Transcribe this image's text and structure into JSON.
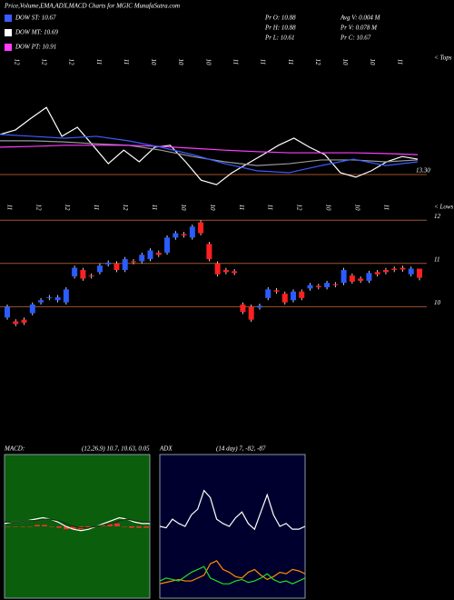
{
  "header": {
    "title": "Price,Volume,EMA,ADX,MACD Charts for MGIC MunafaSutra.com",
    "legend": [
      {
        "text": "DOW ST: 10.67",
        "color": "#3a5cff"
      },
      {
        "text": "DOW MT: 10.69",
        "color": "#ffffff"
      },
      {
        "text": "DOW PT: 10.91",
        "color": "#ff3cff"
      }
    ],
    "stats": [
      "Pr  O: 10.88",
      "Avg V: 0.004  M",
      "Pr  H: 10.88",
      "Pr  V: 0.078 M",
      "Pr  L: 10.61",
      "Pr  C: 10.67"
    ],
    "top_labels": [
      "12",
      "12",
      "12",
      "11",
      "11",
      "10",
      "10",
      "10",
      "11",
      "11",
      "11",
      "12",
      "10",
      "10",
      "11"
    ],
    "top_end": "< Tops",
    "bottom_labels": [
      "11",
      "12",
      "12",
      "11",
      "12",
      "11",
      "10",
      "10",
      "11",
      "11",
      "12",
      "10",
      "10",
      "11"
    ],
    "bottom_end": "< Lows"
  },
  "chart_data": [
    {
      "type": "line",
      "ylim": [
        12.5,
        16.5
      ],
      "yticks": [
        {
          "value": 13.3,
          "label": "13.30"
        }
      ],
      "grid_color": "#a0522d",
      "series": [
        {
          "color": "#ffffff",
          "values": [
            14.37,
            14.49,
            14.8,
            15.09,
            14.32,
            14.56,
            14.08,
            13.59,
            13.95,
            13.64,
            14.03,
            14.08,
            13.64,
            13.15,
            13.03,
            13.35,
            13.59,
            13.83,
            14.08,
            14.27,
            14.03,
            13.83,
            13.35,
            13.23,
            13.4,
            13.64,
            13.78,
            13.71
          ]
        },
        {
          "color": "#999999",
          "values": [
            14.2,
            14.2,
            14.17,
            14.12,
            14.08,
            13.95,
            13.78,
            13.64,
            13.54,
            13.59,
            13.69,
            13.69,
            13.64,
            13.69
          ]
        },
        {
          "color": "#ff3cff",
          "values": [
            14.03,
            14.05,
            14.08,
            14.08,
            14.08,
            14.05,
            14.0,
            13.95,
            13.91,
            13.88,
            13.88,
            13.88,
            13.86,
            13.83
          ]
        },
        {
          "color": "#3a5cff",
          "values": [
            14.37,
            14.32,
            14.27,
            14.32,
            14.2,
            14.03,
            13.83,
            13.59,
            13.4,
            13.35,
            13.54,
            13.71,
            13.54,
            13.64
          ]
        }
      ]
    },
    {
      "type": "candlestick",
      "ylim": [
        7.0,
        12.3
      ],
      "yticks": [
        10,
        11,
        12
      ],
      "grid_color": "#a0522d",
      "up_color": "#2a5cff",
      "down_color": "#ff2020",
      "open": [
        9.75,
        9.66,
        9.7,
        9.85,
        10.1,
        10.2,
        10.15,
        10.1,
        10.7,
        10.85,
        10.72,
        10.8,
        10.98,
        11.0,
        10.85,
        11.05,
        11.05,
        11.1,
        11.25,
        11.25,
        11.6,
        11.68,
        11.6,
        11.95,
        11.45,
        11.0,
        10.85,
        10.82,
        10.05,
        10.0,
        9.98,
        10.2,
        10.38,
        10.3,
        10.15,
        10.35,
        10.42,
        10.48,
        10.45,
        10.52,
        10.55,
        10.72,
        10.65,
        10.6,
        10.8,
        10.85,
        10.88,
        10.9,
        10.75,
        10.88
      ],
      "high": [
        10.05,
        9.71,
        9.75,
        10.1,
        10.2,
        10.27,
        10.27,
        10.45,
        10.95,
        10.9,
        10.77,
        11.0,
        11.07,
        11.05,
        11.15,
        11.1,
        11.25,
        11.35,
        11.3,
        11.65,
        11.75,
        11.73,
        11.9,
        12.0,
        11.5,
        11.05,
        10.9,
        10.87,
        10.1,
        10.05,
        10.07,
        10.45,
        10.43,
        10.35,
        10.4,
        10.4,
        10.55,
        10.53,
        10.6,
        10.57,
        10.9,
        10.77,
        10.7,
        10.83,
        10.85,
        10.9,
        10.93,
        10.95,
        10.93,
        10.88
      ],
      "low": [
        9.7,
        9.55,
        9.58,
        9.8,
        10.05,
        10.15,
        10.1,
        10.05,
        10.65,
        10.6,
        10.65,
        10.75,
        10.93,
        10.8,
        10.8,
        10.98,
        11.0,
        11.05,
        11.15,
        11.2,
        11.55,
        11.6,
        11.55,
        11.65,
        11.05,
        10.7,
        10.75,
        10.73,
        9.83,
        9.65,
        9.93,
        10.15,
        10.3,
        10.05,
        10.1,
        10.15,
        10.37,
        10.4,
        10.4,
        10.45,
        10.5,
        10.53,
        10.55,
        10.55,
        10.7,
        10.75,
        10.8,
        10.81,
        10.7,
        10.61
      ],
      "close": [
        10.0,
        9.6,
        9.63,
        10.05,
        10.15,
        10.22,
        10.22,
        10.4,
        10.9,
        10.65,
        10.7,
        10.95,
        11.02,
        10.85,
        11.1,
        11.03,
        11.2,
        11.3,
        11.2,
        11.6,
        11.7,
        11.65,
        11.85,
        11.7,
        11.1,
        10.75,
        10.8,
        10.78,
        9.88,
        9.7,
        10.02,
        10.4,
        10.35,
        10.1,
        10.35,
        10.2,
        10.5,
        10.45,
        10.55,
        10.5,
        10.85,
        10.58,
        10.6,
        10.78,
        10.75,
        10.8,
        10.85,
        10.86,
        10.88,
        10.67
      ]
    },
    {
      "type": "line",
      "title": "MACD:",
      "subtitle": "(12,26,9) 10.7, 10.63, 0.05",
      "ylim": [
        -0.5,
        0.5
      ],
      "background": "#0b5e0b",
      "hist_color": "#ff3030",
      "histogram": [
        0,
        0,
        0,
        0,
        0.01,
        0.01,
        0,
        -0.01,
        -0.02,
        -0.02,
        -0.02,
        -0.01,
        0,
        0.01,
        0.02,
        0.02,
        0,
        -0.01,
        -0.01,
        -0.01
      ],
      "series": [
        {
          "color": "#ffffff",
          "values": [
            0.02,
            0.03,
            0.03,
            0.04,
            0.05,
            0.06,
            0.05,
            0.03,
            0.0,
            -0.02,
            -0.03,
            -0.02,
            0.0,
            0.02,
            0.04,
            0.06,
            0.05,
            0.03,
            0.02,
            0.02
          ]
        },
        {
          "color": "#113311",
          "values": [
            0.03,
            0.03,
            0.03,
            0.04,
            0.04,
            0.05,
            0.05,
            0.04,
            0.02,
            0.0,
            -0.01,
            -0.01,
            0.0,
            0.01,
            0.02,
            0.04,
            0.05,
            0.04,
            0.03,
            0.03
          ]
        }
      ]
    },
    {
      "type": "line",
      "title": "ADX",
      "subtitle": "(14  day) 7, -82, -87",
      "ylim": [
        0,
        100
      ],
      "background": "#00002e",
      "series": [
        {
          "color": "#ffffff",
          "values": [
            50,
            49,
            55,
            52,
            50,
            58,
            62,
            75,
            70,
            55,
            52,
            50,
            56,
            60,
            52,
            48,
            60,
            72,
            58,
            50,
            52,
            48,
            48,
            50
          ]
        },
        {
          "color": "#ff8c00",
          "values": [
            10,
            11,
            12,
            13,
            12,
            12,
            14,
            16,
            24,
            26,
            20,
            18,
            15,
            14,
            18,
            20,
            16,
            13,
            15,
            18,
            17,
            20,
            19,
            17
          ]
        },
        {
          "color": "#22dd22",
          "values": [
            12,
            14,
            13,
            12,
            15,
            18,
            20,
            22,
            14,
            12,
            10,
            10,
            12,
            13,
            11,
            12,
            14,
            17,
            13,
            11,
            12,
            10,
            12,
            14
          ]
        }
      ]
    }
  ]
}
